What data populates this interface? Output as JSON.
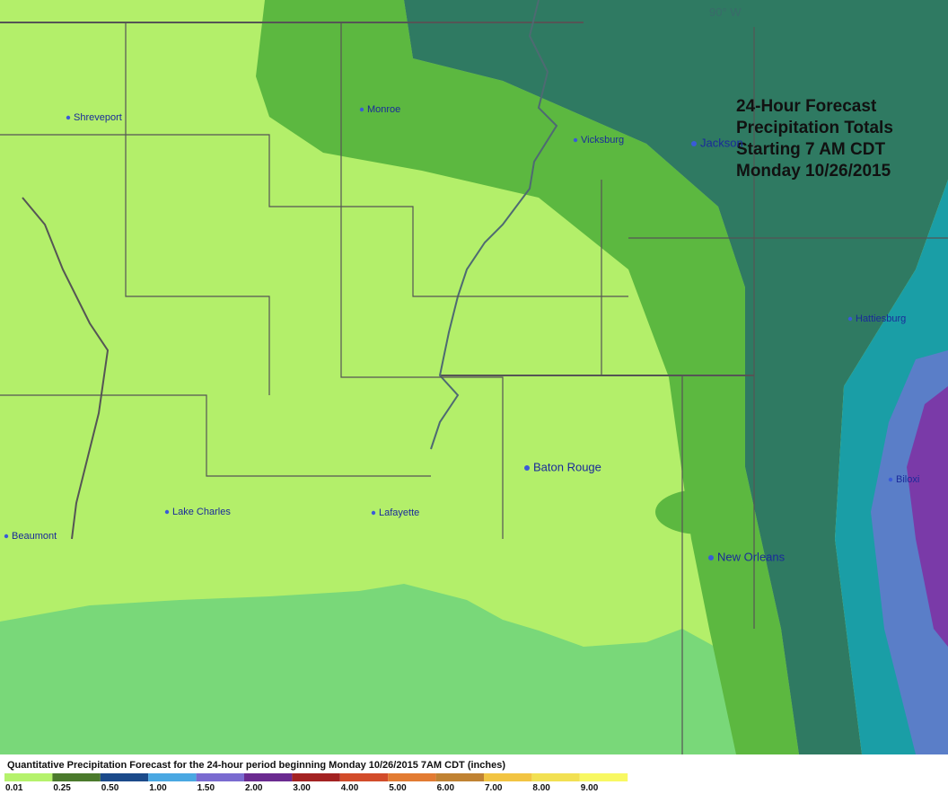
{
  "map": {
    "meridian_label": "90° W",
    "title_lines": [
      "24-Hour Forecast",
      "Precipitation Totals",
      "Starting 7 AM CDT",
      "Monday 10/26/2015"
    ],
    "cities": [
      {
        "label": "Shreveport"
      },
      {
        "label": "Monroe"
      },
      {
        "label": "Vicksburg"
      },
      {
        "label": "Jackson"
      },
      {
        "label": "Hattiesburg"
      },
      {
        "label": "Biloxi"
      },
      {
        "label": "Baton Rouge"
      },
      {
        "label": "Lake Charles"
      },
      {
        "label": "Lafayette"
      },
      {
        "label": "Beaumont"
      },
      {
        "label": "New Orleans"
      }
    ]
  },
  "legend": {
    "caption": "Quantitative Precipitation Forecast for the 24-hour period beginning Monday 10/26/2015 7AM CDT (inches)",
    "items": [
      {
        "label": "0.01",
        "color": "#b5f26c"
      },
      {
        "label": "0.25",
        "color": "#4b7a2c"
      },
      {
        "label": "0.50",
        "color": "#1b4a8a"
      },
      {
        "label": "1.00",
        "color": "#4aa8e2"
      },
      {
        "label": "1.50",
        "color": "#7a6bd0"
      },
      {
        "label": "2.00",
        "color": "#6a2a90"
      },
      {
        "label": "3.00",
        "color": "#a32222"
      },
      {
        "label": "4.00",
        "color": "#d24c2a"
      },
      {
        "label": "5.00",
        "color": "#e27b32"
      },
      {
        "label": "6.00",
        "color": "#c08232"
      },
      {
        "label": "7.00",
        "color": "#f2c442"
      },
      {
        "label": "8.00",
        "color": "#f2e052"
      },
      {
        "label": "9.00",
        "color": "#f8f862"
      }
    ]
  }
}
